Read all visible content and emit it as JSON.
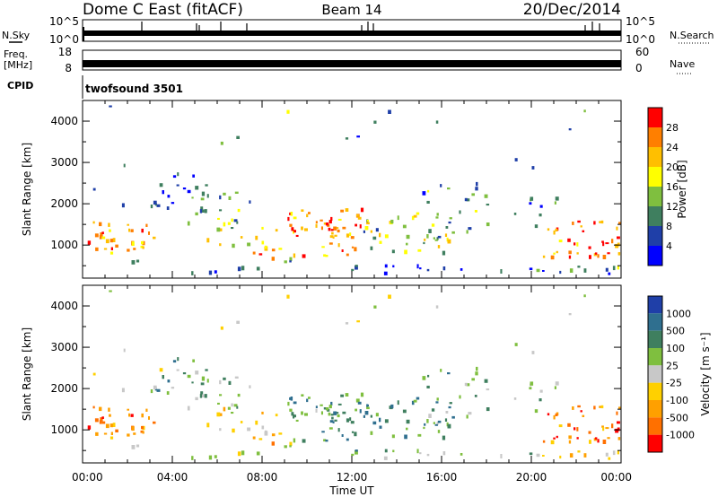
{
  "header": {
    "station": "Dome C East (fitACF)",
    "beam": "Beam 14",
    "date": "20/Dec/2014"
  },
  "sky_panel": {
    "left_label": "N.Sky",
    "right_label": "N.Search",
    "left_ticks": [
      "10^5",
      "10^0"
    ],
    "right_ticks": [
      "10^5",
      "10^0"
    ]
  },
  "freq_panel": {
    "left_label_line1": "Freq.",
    "left_label_line2": "[MHz]",
    "right_label": "Nave",
    "left_ticks": [
      "18",
      "8"
    ],
    "right_ticks": [
      "60",
      "0"
    ]
  },
  "cpid_panel": {
    "label": "CPID",
    "program": "twofsound 3501"
  },
  "x_axis": {
    "label": "Time UT",
    "ticks": [
      "00:00",
      "04:00",
      "08:00",
      "12:00",
      "16:00",
      "20:00",
      "00:00"
    ]
  },
  "colors": {
    "power": [
      "#0000ff",
      "#1f3fa8",
      "#3f7f5f",
      "#7fbf3f",
      "#ffff00",
      "#ffbf00",
      "#ff7f00",
      "#ff0000"
    ],
    "velocity": [
      "#1f3fa8",
      "#2f6f8f",
      "#3f7f5f",
      "#7fbf3f",
      "#c8c8c8",
      "#ffd000",
      "#ffa000",
      "#ff7000",
      "#ff0000"
    ]
  },
  "chart_data": [
    {
      "type": "heatmap",
      "title": "Power",
      "xlabel": "Time UT",
      "ylabel": "Slant Range [km]",
      "y_ticks": [
        "1000",
        "2000",
        "3000",
        "4000"
      ],
      "ylim": [
        200,
        4500
      ],
      "xlim": [
        "00:00",
        "24:00"
      ],
      "colorbar": {
        "label": "Power [dB]",
        "tick_labels": [
          "4",
          "8",
          "12",
          "16",
          "20",
          "24",
          "28"
        ],
        "range": [
          0,
          32
        ]
      }
    },
    {
      "type": "heatmap",
      "title": "Velocity",
      "xlabel": "Time UT",
      "ylabel": "Slant Range [km]",
      "y_ticks": [
        "1000",
        "2000",
        "3000",
        "4000"
      ],
      "ylim": [
        200,
        4500
      ],
      "xlim": [
        "00:00",
        "24:00"
      ],
      "colorbar": {
        "label": "Velocity [m s⁻¹]",
        "tick_labels": [
          "1000",
          "500",
          "100",
          "25",
          "-25",
          "-100",
          "-500",
          "-1000"
        ]
      }
    }
  ]
}
